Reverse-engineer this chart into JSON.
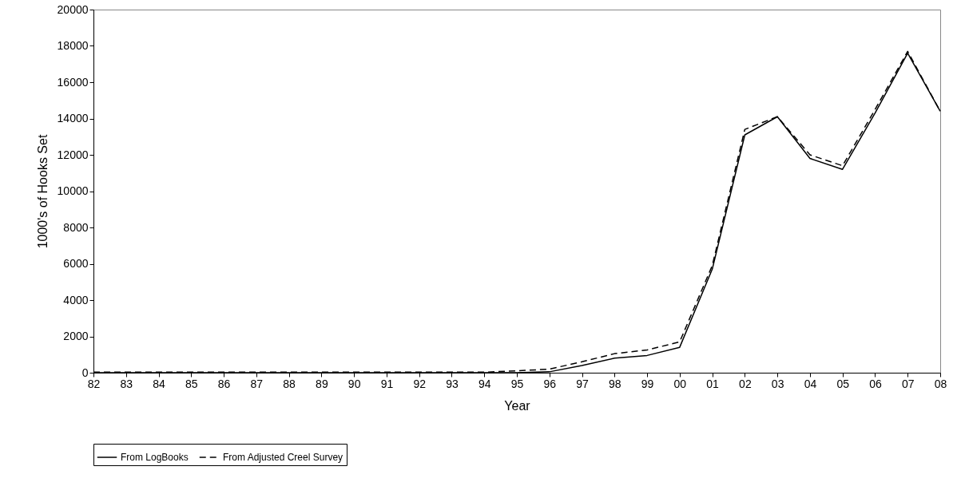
{
  "chart_data": {
    "type": "line",
    "xlabel": "Year",
    "ylabel": "1000's of Hooks Set",
    "categories": [
      "82",
      "83",
      "84",
      "85",
      "86",
      "87",
      "88",
      "89",
      "90",
      "91",
      "92",
      "93",
      "94",
      "95",
      "96",
      "97",
      "98",
      "99",
      "00",
      "01",
      "02",
      "03",
      "04",
      "05",
      "06",
      "07",
      "08"
    ],
    "series": [
      {
        "name": "From LogBooks",
        "color": "#000000",
        "line_style": "solid",
        "values": [
          0,
          0,
          0,
          0,
          0,
          0,
          0,
          0,
          0,
          0,
          0,
          0,
          0,
          0,
          50,
          400,
          800,
          950,
          1400,
          5700,
          13100,
          14100,
          11800,
          11200,
          14300,
          17600,
          14400
        ]
      },
      {
        "name": "From Adjusted Creel Survey",
        "color": "#000000",
        "line_style": "dashed",
        "values": [
          30,
          30,
          30,
          30,
          30,
          30,
          30,
          30,
          30,
          30,
          30,
          30,
          30,
          100,
          200,
          600,
          1050,
          1250,
          1700,
          5900,
          13400,
          14100,
          12000,
          11400,
          14500,
          17700,
          14400
        ]
      }
    ],
    "ylim": [
      0,
      20000
    ],
    "yticks": [
      0,
      2000,
      4000,
      6000,
      8000,
      10000,
      12000,
      14000,
      16000,
      18000,
      20000
    ],
    "grid": false,
    "legend": "bottom",
    "marker": "none"
  }
}
